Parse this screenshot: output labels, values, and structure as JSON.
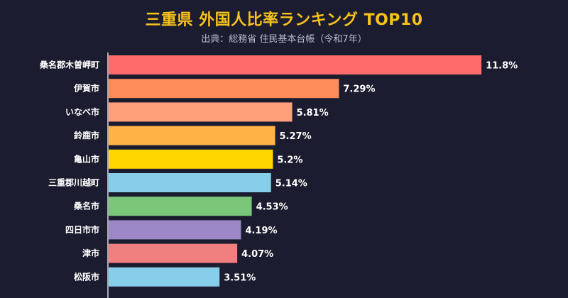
{
  "chart_data": {
    "type": "bar",
    "orientation": "horizontal",
    "title": "三重県 外国人比率ランキング TOP10",
    "subtitle": "出典：総務省 住民基本台帳（令和7年）",
    "categories": [
      "桑名郡木曽岬町",
      "伊賀市",
      "いなべ市",
      "鈴鹿市",
      "亀山市",
      "三重郡川越町",
      "桑名市",
      "四日市市",
      "津市",
      "松阪市"
    ],
    "values": [
      11.8,
      7.29,
      5.81,
      5.27,
      5.2,
      5.14,
      4.53,
      4.19,
      4.07,
      3.51
    ],
    "value_labels": [
      "11.8%",
      "7.29%",
      "5.81%",
      "5.27%",
      "5.2%",
      "5.14%",
      "4.53%",
      "4.19%",
      "4.07%",
      "3.51%"
    ],
    "colors": [
      "#ff6b6b",
      "#ff8c5a",
      "#ffa07a",
      "#ffb347",
      "#ffd700",
      "#87ceeb",
      "#7ac77a",
      "#9b88c4",
      "#f08080",
      "#87ceeb"
    ],
    "xlim": [
      0,
      12
    ],
    "grid": false,
    "legend": "none"
  },
  "style": {
    "background": "#1c1c30",
    "title_color": "#f6c21b",
    "subtitle_color": "#b9bccb",
    "label_color": "#ffffff"
  }
}
